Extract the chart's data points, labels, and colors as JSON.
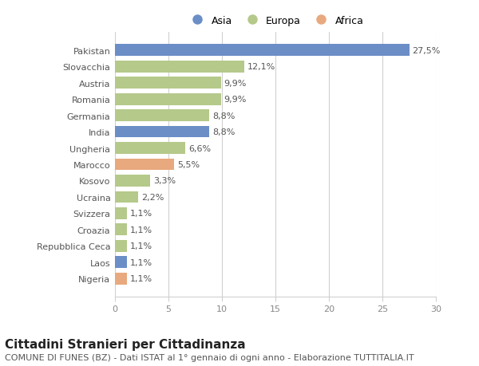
{
  "categories": [
    "Nigeria",
    "Laos",
    "Repubblica Ceca",
    "Croazia",
    "Svizzera",
    "Ucraina",
    "Kosovo",
    "Marocco",
    "Ungheria",
    "India",
    "Germania",
    "Romania",
    "Austria",
    "Slovacchia",
    "Pakistan"
  ],
  "values": [
    1.1,
    1.1,
    1.1,
    1.1,
    1.1,
    2.2,
    3.3,
    5.5,
    6.6,
    8.8,
    8.8,
    9.9,
    9.9,
    12.1,
    27.5
  ],
  "labels": [
    "1,1%",
    "1,1%",
    "1,1%",
    "1,1%",
    "1,1%",
    "2,2%",
    "3,3%",
    "5,5%",
    "6,6%",
    "8,8%",
    "8,8%",
    "9,9%",
    "9,9%",
    "12,1%",
    "27,5%"
  ],
  "colors": [
    "#e8a97e",
    "#6b8ec7",
    "#b5c98a",
    "#b5c98a",
    "#b5c98a",
    "#b5c98a",
    "#b5c98a",
    "#e8a97e",
    "#b5c98a",
    "#6b8ec7",
    "#b5c98a",
    "#b5c98a",
    "#b5c98a",
    "#b5c98a",
    "#6b8ec7"
  ],
  "legend_labels": [
    "Asia",
    "Europa",
    "Africa"
  ],
  "legend_colors": [
    "#6b8ec7",
    "#b5c98a",
    "#e8a97e"
  ],
  "title": "Cittadini Stranieri per Cittadinanza",
  "subtitle": "COMUNE DI FUNES (BZ) - Dati ISTAT al 1° gennaio di ogni anno - Elaborazione TUTTITALIA.IT",
  "xlim": [
    0,
    30
  ],
  "xticks": [
    0,
    5,
    10,
    15,
    20,
    25,
    30
  ],
  "background_color": "#ffffff",
  "grid_color": "#d0d0d0",
  "bar_height": 0.72,
  "title_fontsize": 11,
  "subtitle_fontsize": 8,
  "label_fontsize": 8,
  "tick_fontsize": 8,
  "legend_fontsize": 9
}
